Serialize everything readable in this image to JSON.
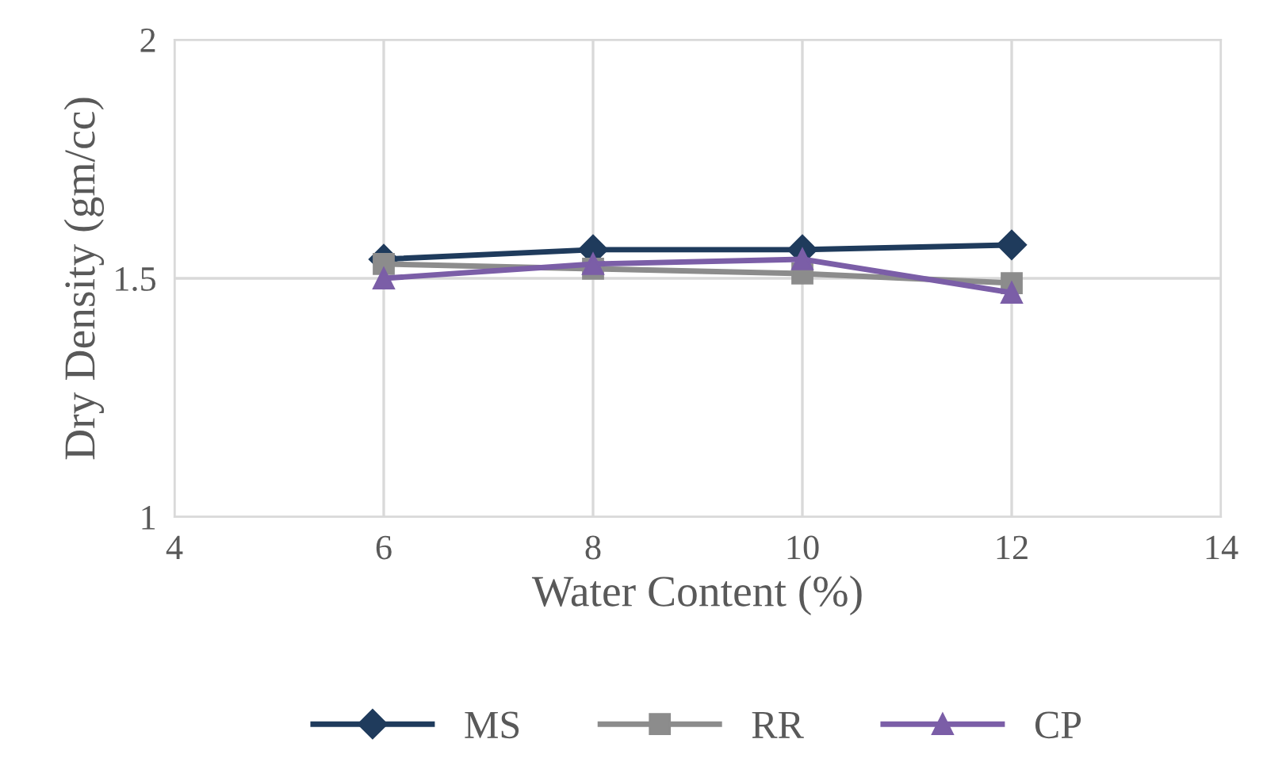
{
  "chart_data": {
    "type": "line",
    "xlabel": "Water Content (%)",
    "ylabel": "Dry Density (gm/cc)",
    "xlim": [
      4,
      14
    ],
    "xticks": [
      4,
      6,
      8,
      10,
      12,
      14
    ],
    "ylim": [
      1,
      2
    ],
    "yticks": [
      1,
      1.5,
      2
    ],
    "grid": true,
    "legend": "bottom",
    "series": [
      {
        "name": "MS",
        "color": "#1f3b5c",
        "marker": "diamond",
        "x": [
          6,
          8,
          10,
          12
        ],
        "values": [
          1.54,
          1.56,
          1.56,
          1.57
        ]
      },
      {
        "name": "RR",
        "color": "#8c8c8c",
        "marker": "square",
        "x": [
          6,
          8,
          10,
          12
        ],
        "values": [
          1.53,
          1.52,
          1.51,
          1.49
        ]
      },
      {
        "name": "CP",
        "color": "#7b5ea7",
        "marker": "triangle",
        "x": [
          6,
          8,
          10,
          12
        ],
        "values": [
          1.5,
          1.53,
          1.54,
          1.47
        ]
      }
    ]
  }
}
